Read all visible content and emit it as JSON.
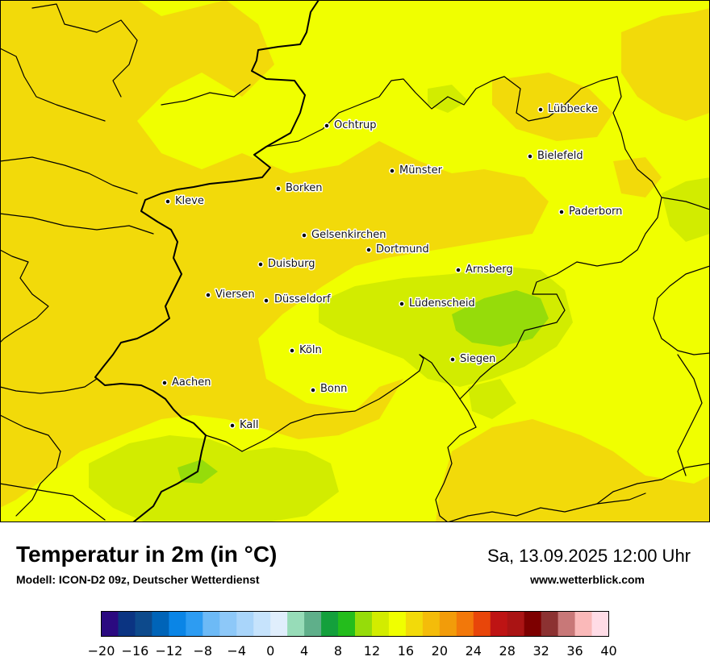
{
  "title": "Temperatur in 2m (in °C)",
  "model": "Modell: ICON-D2 09z, Deutscher Wetterdienst",
  "datetime": "Sa, 13.09.2025 12:00 Uhr",
  "website": "www.wetterblick.com",
  "cities": [
    {
      "name": "Ochtrup"
    },
    {
      "name": "Lübbecke"
    },
    {
      "name": "Bielefeld"
    },
    {
      "name": "Münster"
    },
    {
      "name": "Borken"
    },
    {
      "name": "Kleve"
    },
    {
      "name": "Paderborn"
    },
    {
      "name": "Gelsenkirchen"
    },
    {
      "name": "Dortmund"
    },
    {
      "name": "Duisburg"
    },
    {
      "name": "Arnsberg"
    },
    {
      "name": "Viersen"
    },
    {
      "name": "Düsseldorf"
    },
    {
      "name": "Lüdenscheid"
    },
    {
      "name": "Köln"
    },
    {
      "name": "Siegen"
    },
    {
      "name": "Aachen"
    },
    {
      "name": "Bonn"
    },
    {
      "name": "Kall"
    }
  ],
  "legend": {
    "min": -20,
    "max": 40,
    "tick_labels": [
      "−20",
      "−16",
      "−12",
      "−8",
      "−4",
      "0",
      "4",
      "8",
      "12",
      "16",
      "20",
      "24",
      "28",
      "32",
      "36",
      "40"
    ],
    "colors": [
      "#2b0a80",
      "#0b3482",
      "#0d4a8c",
      "#0064b8",
      "#0a85e6",
      "#2d9cf2",
      "#6dbaf6",
      "#8dc8f8",
      "#a9d5fa",
      "#c6e3fc",
      "#e0eefc",
      "#97dcb8",
      "#5faf8a",
      "#14a03c",
      "#24bd1c",
      "#96dc0a",
      "#d2ec00",
      "#f0ff00",
      "#f2da0a",
      "#f4bc0a",
      "#f29c0a",
      "#f2780a",
      "#e8460a",
      "#be1414",
      "#aa1414",
      "#7d0000",
      "#8c3232",
      "#c87878",
      "#fab9b9",
      "#ffdce6"
    ]
  }
}
